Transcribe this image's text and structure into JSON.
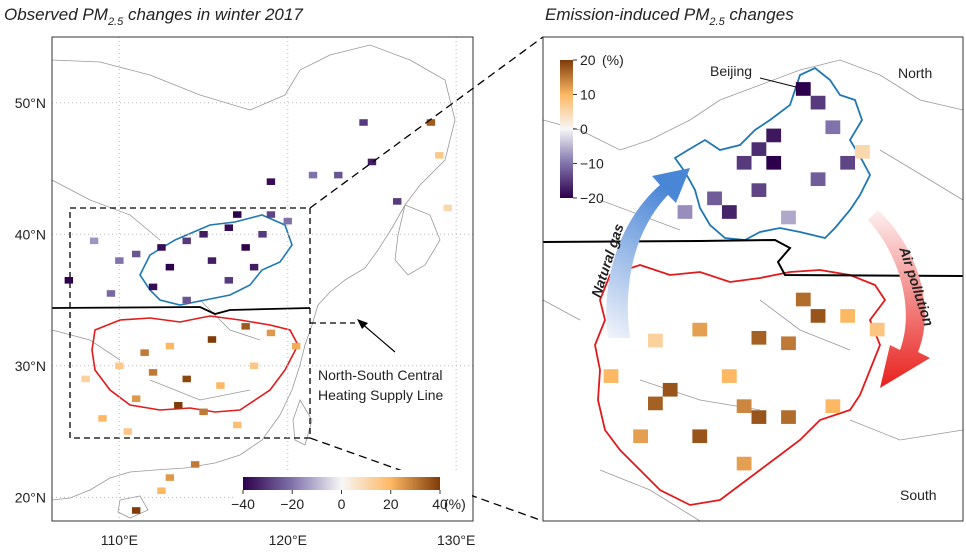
{
  "left_panel": {
    "title": {
      "prefix": "Observed PM",
      "subscript": "2.5",
      "suffix": " changes in winter 2017"
    },
    "xlim": [
      106,
      131
    ],
    "ylim": [
      18.2,
      55
    ],
    "xticks": [
      {
        "value": 110,
        "label": "110°E"
      },
      {
        "value": 120,
        "label": "120°E"
      },
      {
        "value": 130,
        "label": "130°E"
      }
    ],
    "yticks": [
      {
        "value": 50,
        "label": "50°N"
      },
      {
        "value": 40,
        "label": "40°N"
      },
      {
        "value": 30,
        "label": "30°N"
      },
      {
        "value": 20,
        "label": "20°N"
      }
    ],
    "cell_deg": 0.5,
    "cells": [
      [
        124.5,
        48.5,
        -30
      ],
      [
        125,
        45.5,
        -35
      ],
      [
        123,
        44.5,
        -25
      ],
      [
        119,
        44,
        -38
      ],
      [
        121.5,
        44.5,
        -20
      ],
      [
        126.5,
        42.5,
        -30
      ],
      [
        117,
        41.5,
        -40
      ],
      [
        116.5,
        40.5,
        -38
      ],
      [
        115,
        40,
        -35
      ],
      [
        114,
        39.5,
        -30
      ],
      [
        112.5,
        39,
        -38
      ],
      [
        111,
        38.5,
        -25
      ],
      [
        113,
        37.5,
        -40
      ],
      [
        115.5,
        38,
        -35
      ],
      [
        117.5,
        39,
        -40
      ],
      [
        118.5,
        40,
        -30
      ],
      [
        119,
        41.5,
        -28
      ],
      [
        110,
        38,
        -20
      ],
      [
        108.5,
        39.5,
        -15
      ],
      [
        107,
        36.5,
        -40
      ],
      [
        116.5,
        36.5,
        -30
      ],
      [
        114,
        35,
        -25
      ],
      [
        118,
        37.5,
        -35
      ],
      [
        120,
        41,
        -20
      ],
      [
        112,
        36,
        -38
      ],
      [
        109.5,
        35.5,
        -22
      ],
      [
        128.5,
        48.5,
        35
      ],
      [
        129,
        46,
        15
      ],
      [
        129.5,
        42,
        10
      ],
      [
        111.5,
        31,
        30
      ],
      [
        113,
        31.5,
        20
      ],
      [
        115.5,
        32,
        40
      ],
      [
        117.5,
        33,
        35
      ],
      [
        119,
        32.5,
        25
      ],
      [
        110,
        30,
        15
      ],
      [
        112,
        29.5,
        30
      ],
      [
        114,
        29,
        38
      ],
      [
        116,
        28.5,
        20
      ],
      [
        118,
        30,
        15
      ],
      [
        111,
        27.5,
        25
      ],
      [
        113.5,
        27,
        40
      ],
      [
        115,
        26.5,
        30
      ],
      [
        109,
        26,
        20
      ],
      [
        117,
        25.5,
        18
      ],
      [
        120.5,
        31.5,
        22
      ],
      [
        108,
        29,
        12
      ],
      [
        110.5,
        25,
        15
      ],
      [
        114.5,
        22.5,
        30
      ],
      [
        113,
        21.5,
        25
      ],
      [
        111,
        19,
        40
      ],
      [
        112.5,
        20.5,
        20
      ]
    ],
    "colorbar": {
      "lim": [
        -40,
        40
      ],
      "ticks": [
        {
          "value": -40,
          "label": "−40"
        },
        {
          "value": -20,
          "label": "−20"
        },
        0,
        20,
        40
      ],
      "unit": "(%)"
    },
    "annotation": [
      "North-South Central",
      "Heating Supply Line"
    ]
  },
  "right_panel": {
    "title": {
      "prefix": "Emission-induced PM",
      "subscript": "2.5",
      "suffix": " changes"
    },
    "xlim": [
      107.1,
      121.3
    ],
    "ylim": [
      24.4,
      42.1
    ],
    "cell_deg": 0.5,
    "cells": [
      [
        115.9,
        40.2,
        -20
      ],
      [
        116.4,
        39.7,
        -15
      ],
      [
        114.9,
        38.5,
        -18
      ],
      [
        114.4,
        38,
        -16
      ],
      [
        114.9,
        37.5,
        -20
      ],
      [
        114.4,
        36.5,
        -14
      ],
      [
        116.4,
        36.9,
        -12
      ],
      [
        113.9,
        37.5,
        -15
      ],
      [
        112.9,
        36.2,
        -12
      ],
      [
        113.4,
        35.7,
        -17
      ],
      [
        117.4,
        37.5,
        -14
      ],
      [
        116.9,
        38.8,
        -10
      ],
      [
        117.9,
        37.9,
        5
      ],
      [
        111.9,
        35.7,
        -8
      ],
      [
        115.4,
        35.5,
        -6
      ],
      [
        115.9,
        32.5,
        16
      ],
      [
        116.4,
        31.9,
        18
      ],
      [
        114.4,
        31.1,
        17
      ],
      [
        115.4,
        30.9,
        15
      ],
      [
        112.4,
        31.4,
        12
      ],
      [
        117.4,
        31.9,
        10
      ],
      [
        110.9,
        31,
        6
      ],
      [
        113.4,
        29.7,
        10
      ],
      [
        111.4,
        29.2,
        18
      ],
      [
        110.9,
        28.7,
        17
      ],
      [
        113.9,
        28.6,
        14
      ],
      [
        114.4,
        28.2,
        18
      ],
      [
        115.4,
        28.2,
        16
      ],
      [
        112.4,
        27.5,
        18
      ],
      [
        110.4,
        27.5,
        12
      ],
      [
        116.9,
        28.6,
        10
      ],
      [
        113.9,
        26.5,
        12
      ],
      [
        118.4,
        31.4,
        8
      ],
      [
        109.4,
        29.7,
        10
      ]
    ],
    "colorbar": {
      "lim": [
        -20,
        20
      ],
      "ticks": [
        20,
        10,
        0,
        {
          "value": -10,
          "label": "−10"
        },
        {
          "value": -20,
          "label": "−20"
        }
      ],
      "unit": "(%)"
    },
    "labels": {
      "beijing": "Beijing",
      "north": "North",
      "south": "South",
      "natural_gas": "Natural gas",
      "air_pollution": "Air pollution"
    }
  }
}
